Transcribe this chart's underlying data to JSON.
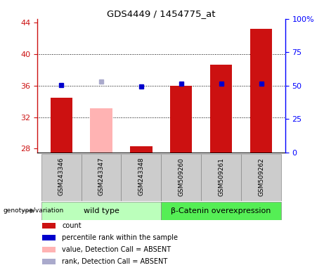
{
  "title": "GDS4449 / 1454775_at",
  "samples": [
    "GSM243346",
    "GSM243347",
    "GSM243348",
    "GSM509260",
    "GSM509261",
    "GSM509262"
  ],
  "count_values": [
    34.5,
    null,
    28.3,
    36.0,
    38.7,
    43.2
  ],
  "count_absent_values": [
    null,
    33.1,
    null,
    null,
    null,
    null
  ],
  "rank_values": [
    36.1,
    null,
    35.9,
    36.3,
    36.3,
    36.3
  ],
  "rank_absent_values": [
    null,
    36.5,
    null,
    null,
    null,
    null
  ],
  "ylim_left": [
    27.5,
    44.5
  ],
  "ylim_right": [
    0,
    100
  ],
  "yticks_left": [
    28,
    32,
    36,
    40,
    44
  ],
  "yticks_right": [
    0,
    25,
    50,
    75,
    100
  ],
  "ytick_labels_right": [
    "0",
    "25",
    "50",
    "75",
    "100%"
  ],
  "hlines": [
    32,
    36,
    40
  ],
  "bar_color_red": "#cc1111",
  "bar_color_pink": "#ffb3b3",
  "dot_color_blue": "#0000cc",
  "dot_color_lightblue": "#aaaacc",
  "group1_label": "wild type",
  "group2_label": "β-Catenin overexpression",
  "group1_color": "#bbffbb",
  "group2_color": "#55ee55",
  "group_bg_color": "#cccccc",
  "bar_width": 0.55,
  "base_value": 27.5,
  "legend_items": [
    {
      "color": "#cc1111",
      "label": "count"
    },
    {
      "color": "#0000cc",
      "label": "percentile rank within the sample"
    },
    {
      "color": "#ffb3b3",
      "label": "value, Detection Call = ABSENT"
    },
    {
      "color": "#aaaacc",
      "label": "rank, Detection Call = ABSENT"
    }
  ]
}
